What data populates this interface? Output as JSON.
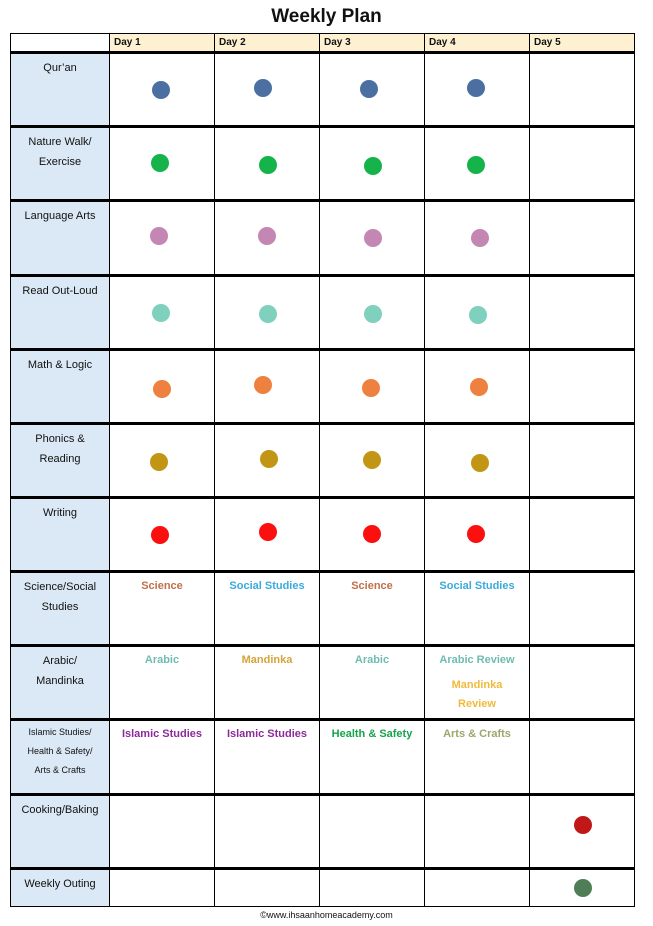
{
  "title": "Weekly Plan",
  "days": [
    "Day 1",
    "Day 2",
    "Day 3",
    "Day 4",
    "Day 5"
  ],
  "colors": {
    "quran": "#4a6fa0",
    "nature": "#16b34a",
    "language": "#c486b3",
    "read": "#7fd0bd",
    "math": "#ee8040",
    "phonics": "#c29614",
    "writing": "#fc0f0f",
    "cooking": "#c01818",
    "outing": "#4f7e56",
    "science": "#c0704a",
    "social": "#39aadc",
    "arabic": "#6fbcb0",
    "mandinka": "#f1b93a",
    "mandinka_day2": "#d6a33a",
    "islamic": "#8b2a99",
    "health": "#16a34a",
    "arts": "#9aa86b"
  },
  "rows": [
    {
      "subject": "Qur’an",
      "dots": [
        "quran",
        "quran",
        "quran",
        "quran",
        null
      ]
    },
    {
      "subject": "Nature Walk/ Exercise",
      "dots": [
        "nature",
        "nature",
        "nature",
        "nature",
        null
      ]
    },
    {
      "subject": "Language Arts",
      "dots": [
        "language",
        "language",
        "language",
        "language",
        null
      ]
    },
    {
      "subject": "Read Out-Loud",
      "dots": [
        "read",
        "read",
        "read",
        "read",
        null
      ]
    },
    {
      "subject": "Math & Logic",
      "dots": [
        "math",
        "math",
        "math",
        "math",
        null
      ]
    },
    {
      "subject": "Phonics & Reading",
      "dots": [
        "phonics",
        "phonics",
        "phonics",
        "phonics",
        null
      ]
    },
    {
      "subject": "Writing",
      "dots": [
        "writing",
        "writing",
        "writing",
        "writing",
        null
      ]
    },
    {
      "subject": "Science/Social Studies",
      "labels": [
        "Science",
        "Social Studies",
        "Science",
        "Social Studies",
        ""
      ]
    },
    {
      "subject": "Arabic/ Mandinka",
      "labels": [
        "Arabic",
        "Mandinka",
        "Arabic",
        "Arabic Review",
        ""
      ],
      "extra_day4": "Mandinka Review"
    },
    {
      "subject": "Islamic Studies/ Health & Safety/ Arts & Crafts",
      "labels": [
        "Islamic Studies",
        "Islamic Studies",
        "Health & Safety",
        "Arts & Crafts",
        ""
      ]
    },
    {
      "subject": "Cooking/Baking",
      "dots": [
        null,
        null,
        null,
        null,
        "cooking"
      ]
    },
    {
      "subject": "Weekly Outing",
      "dots": [
        null,
        null,
        null,
        null,
        "outing"
      ]
    }
  ],
  "footer": "©www.ihsaanhomeacademy.com"
}
